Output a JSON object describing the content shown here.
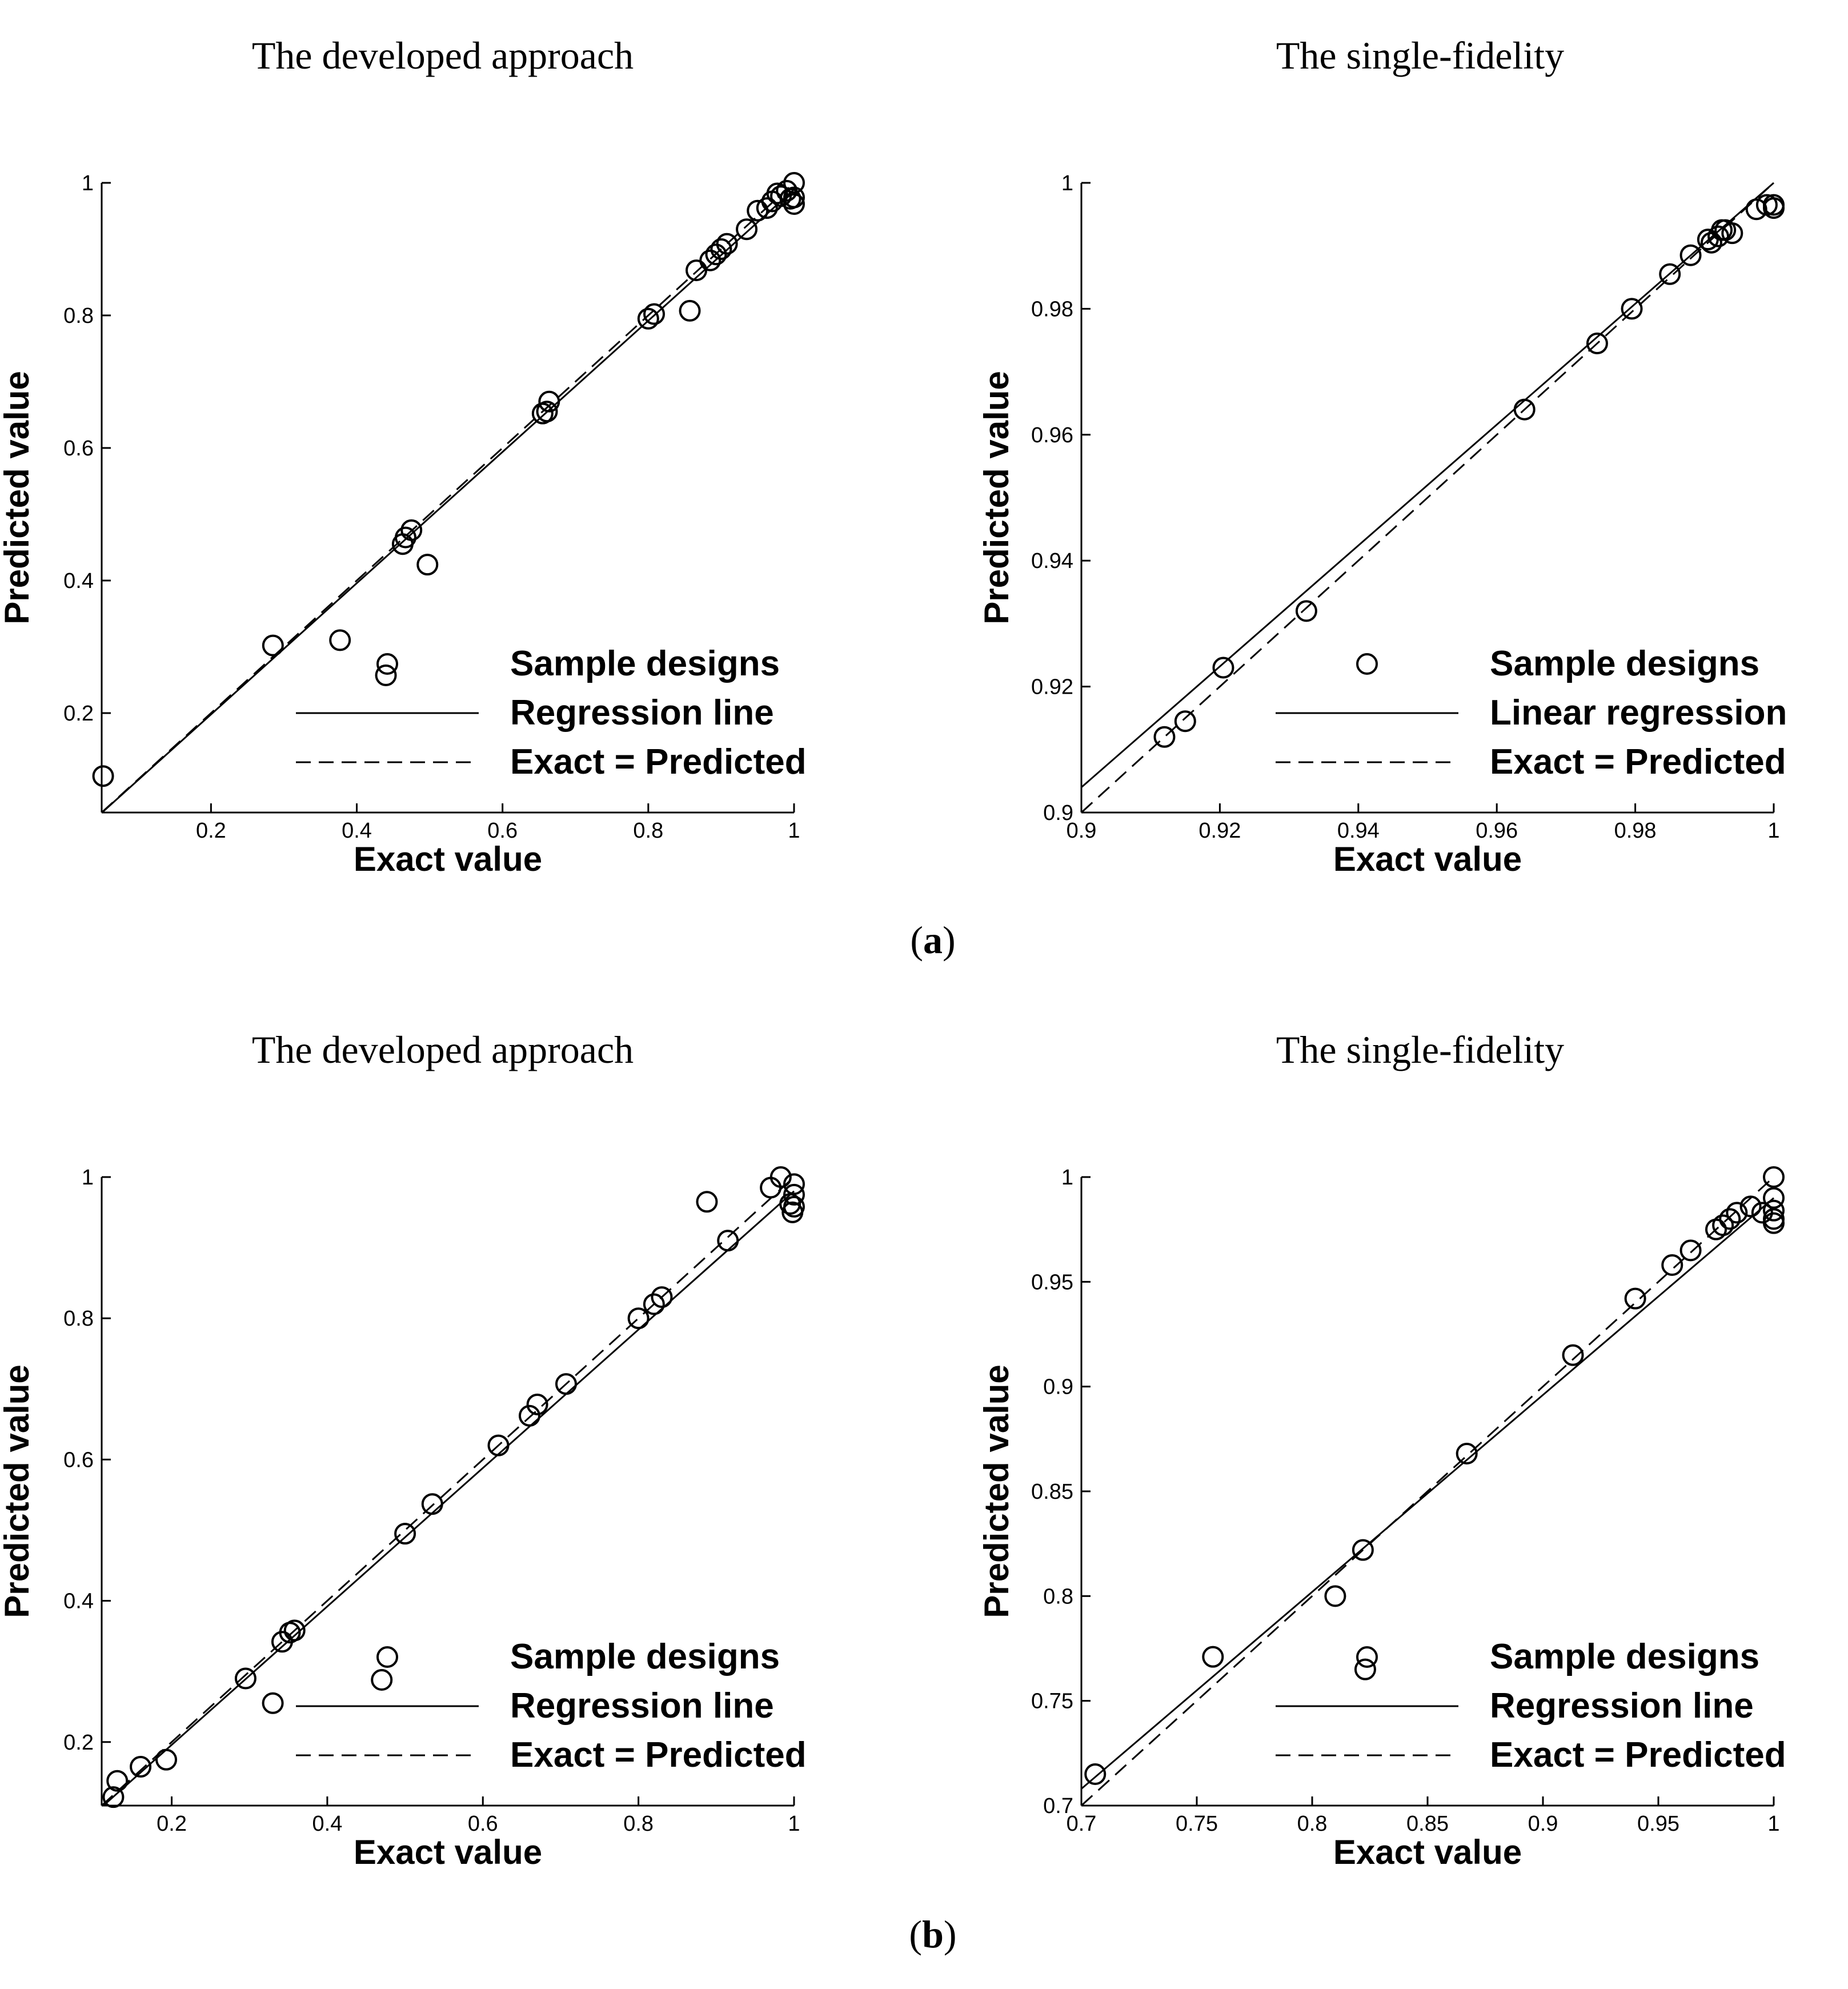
{
  "captions": [
    "(a)",
    "(b)"
  ],
  "chart_data": [
    {
      "type": "scatter",
      "title": "The developed approach",
      "xlabel": "Exact value",
      "ylabel": "Predicted value",
      "xlim": [
        0.05,
        1.0
      ],
      "ylim": [
        0.05,
        1.0
      ],
      "xticks": [
        0.2,
        0.4,
        0.6,
        0.8,
        1
      ],
      "yticks": [
        0.2,
        0.4,
        0.6,
        0.8,
        1
      ],
      "xtick_labels": [
        "0.2",
        "0.4",
        "0.6",
        "0.8",
        "1"
      ],
      "ytick_labels": [
        "0.2",
        "0.4",
        "0.6",
        "0.8",
        "1"
      ],
      "legend": [
        "Sample designs",
        "Regression line",
        "Exact = Predicted"
      ],
      "legend_position": "bottom-right",
      "regression": {
        "slope": 0.99,
        "intercept": 0.0
      },
      "points": [
        [
          0.052,
          0.105
        ],
        [
          0.285,
          0.302
        ],
        [
          0.377,
          0.31
        ],
        [
          0.44,
          0.257
        ],
        [
          0.463,
          0.455
        ],
        [
          0.467,
          0.465
        ],
        [
          0.475,
          0.476
        ],
        [
          0.497,
          0.424
        ],
        [
          0.655,
          0.652
        ],
        [
          0.661,
          0.655
        ],
        [
          0.664,
          0.67
        ],
        [
          0.8,
          0.795
        ],
        [
          0.808,
          0.802
        ],
        [
          0.857,
          0.807
        ],
        [
          0.866,
          0.868
        ],
        [
          0.885,
          0.883
        ],
        [
          0.893,
          0.892
        ],
        [
          0.9,
          0.9
        ],
        [
          0.908,
          0.908
        ],
        [
          0.935,
          0.93
        ],
        [
          0.95,
          0.958
        ],
        [
          0.963,
          0.962
        ],
        [
          0.97,
          0.972
        ],
        [
          0.977,
          0.984
        ],
        [
          0.982,
          0.98
        ],
        [
          0.99,
          0.988
        ],
        [
          0.995,
          0.976
        ],
        [
          1.0,
          1.0
        ],
        [
          1.0,
          0.968
        ],
        [
          1.0,
          0.978
        ]
      ]
    },
    {
      "type": "scatter",
      "title": "The single-fidelity",
      "xlabel": "Exact value",
      "ylabel": "Predicted value",
      "xlim": [
        0.9,
        1.0
      ],
      "ylim": [
        0.9,
        1.0
      ],
      "xticks": [
        0.9,
        0.92,
        0.94,
        0.96,
        0.98,
        1
      ],
      "yticks": [
        0.9,
        0.92,
        0.94,
        0.96,
        0.98,
        1
      ],
      "xtick_labels": [
        "0.9",
        "0.92",
        "0.94",
        "0.96",
        "0.98",
        "1"
      ],
      "ytick_labels": [
        "0.9",
        "0.92",
        "0.94",
        "0.96",
        "0.98",
        "1"
      ],
      "legend": [
        "Sample designs",
        "Linear regression",
        "Exact = Predicted"
      ],
      "legend_position": "bottom-right",
      "regression": {
        "slope": 0.96,
        "intercept": 0.04
      },
      "points": [
        [
          0.912,
          0.912
        ],
        [
          0.915,
          0.9145
        ],
        [
          0.9205,
          0.923
        ],
        [
          0.9325,
          0.932
        ],
        [
          0.964,
          0.964
        ],
        [
          0.9745,
          0.9745
        ],
        [
          0.9795,
          0.98
        ],
        [
          0.985,
          0.9855
        ],
        [
          0.988,
          0.9885
        ],
        [
          0.9905,
          0.991
        ],
        [
          0.991,
          0.9905
        ],
        [
          0.992,
          0.9915
        ],
        [
          0.9925,
          0.9925
        ],
        [
          0.993,
          0.9925
        ],
        [
          0.994,
          0.992
        ],
        [
          0.9975,
          0.9958
        ],
        [
          0.999,
          0.9965
        ],
        [
          1.0,
          0.9965
        ],
        [
          1.0,
          0.996
        ]
      ]
    },
    {
      "type": "scatter",
      "title": "The developed approach",
      "xlabel": "Exact value",
      "ylabel": "Predicted value",
      "xlim": [
        0.11,
        1.0
      ],
      "ylim": [
        0.11,
        1.0
      ],
      "xticks": [
        0.2,
        0.4,
        0.6,
        0.8,
        1
      ],
      "yticks": [
        0.2,
        0.4,
        0.6,
        0.8,
        1
      ],
      "xtick_labels": [
        "0.2",
        "0.4",
        "0.6",
        "0.8",
        "1"
      ],
      "ytick_labels": [
        "0.2",
        "0.4",
        "0.6",
        "0.8",
        "1"
      ],
      "legend": [
        "Sample designs",
        "Regression line",
        "Exact = Predicted"
      ],
      "legend_position": "bottom-right",
      "regression": {
        "slope": 0.98,
        "intercept": 0.0
      },
      "points": [
        [
          0.125,
          0.122
        ],
        [
          0.13,
          0.145
        ],
        [
          0.16,
          0.165
        ],
        [
          0.193,
          0.175
        ],
        [
          0.295,
          0.29
        ],
        [
          0.33,
          0.255
        ],
        [
          0.342,
          0.342
        ],
        [
          0.352,
          0.355
        ],
        [
          0.358,
          0.358
        ],
        [
          0.47,
          0.288
        ],
        [
          0.5,
          0.495
        ],
        [
          0.535,
          0.537
        ],
        [
          0.62,
          0.62
        ],
        [
          0.66,
          0.662
        ],
        [
          0.67,
          0.678
        ],
        [
          0.707,
          0.707
        ],
        [
          0.8,
          0.8
        ],
        [
          0.82,
          0.82
        ],
        [
          0.83,
          0.83
        ],
        [
          0.888,
          0.965
        ],
        [
          0.915,
          0.91
        ],
        [
          0.97,
          0.985
        ],
        [
          0.983,
          1.0
        ],
        [
          0.995,
          0.962
        ],
        [
          0.998,
          0.95
        ],
        [
          1.0,
          0.99
        ],
        [
          1.0,
          0.975
        ],
        [
          1.0,
          0.958
        ]
      ]
    },
    {
      "type": "scatter",
      "title": "The single-fidelity",
      "xlabel": "Exact value",
      "ylabel": "Predicted value",
      "xlim": [
        0.7,
        1.0
      ],
      "ylim": [
        0.7,
        1.0
      ],
      "xticks": [
        0.7,
        0.75,
        0.8,
        0.85,
        0.9,
        0.95,
        1
      ],
      "yticks": [
        0.7,
        0.75,
        0.8,
        0.85,
        0.9,
        0.95,
        1
      ],
      "xtick_labels": [
        "0.7",
        "0.75",
        "0.8",
        "0.85",
        "0.9",
        "0.95",
        "1"
      ],
      "ytick_labels": [
        "0.7",
        "0.75",
        "0.8",
        "0.85",
        "0.9",
        "0.95",
        "1"
      ],
      "legend": [
        "Sample designs",
        "Regression line",
        "Exact = Predicted"
      ],
      "legend_position": "bottom-right",
      "regression": {
        "slope": 0.94,
        "intercept": 0.05
      },
      "points": [
        [
          0.706,
          0.715
        ],
        [
          0.757,
          0.771
        ],
        [
          0.81,
          0.8
        ],
        [
          0.822,
          0.822
        ],
        [
          0.823,
          0.765
        ],
        [
          0.867,
          0.868
        ],
        [
          0.913,
          0.915
        ],
        [
          0.94,
          0.942
        ],
        [
          0.956,
          0.958
        ],
        [
          0.964,
          0.965
        ],
        [
          0.975,
          0.975
        ],
        [
          0.978,
          0.977
        ],
        [
          0.981,
          0.98
        ],
        [
          0.984,
          0.983
        ],
        [
          0.99,
          0.986
        ],
        [
          0.995,
          0.983
        ],
        [
          1.0,
          1.0
        ],
        [
          1.0,
          0.99
        ],
        [
          1.0,
          0.984
        ],
        [
          1.0,
          0.98
        ],
        [
          1.0,
          0.978
        ]
      ]
    }
  ]
}
